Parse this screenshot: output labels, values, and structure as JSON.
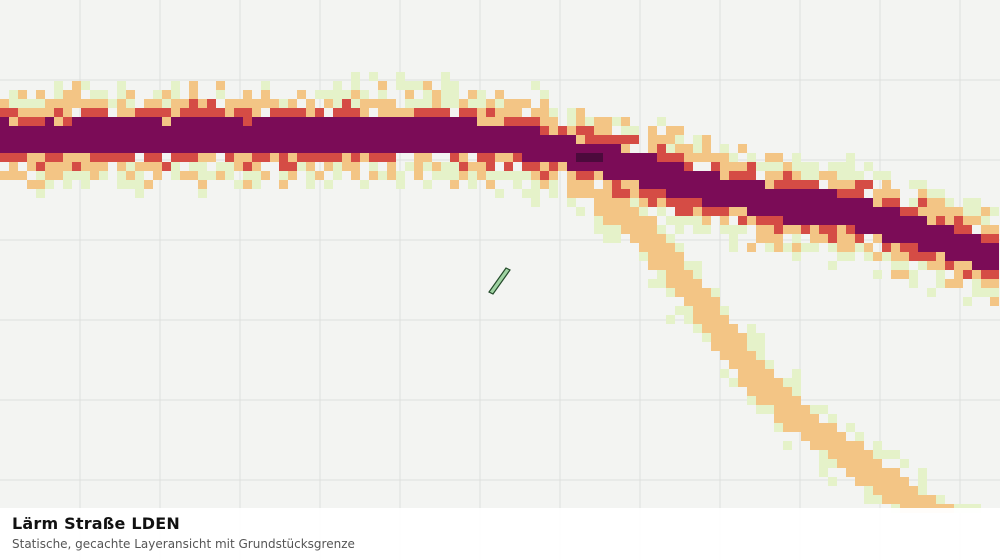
{
  "map": {
    "layer_name": "Lärm Straße LDEN",
    "colors": {
      "background": "#f3f4f2",
      "grid": "#dedfdd",
      "band_low": "#e5f2c9",
      "band_mid": "#f3c585",
      "band_high": "#d54c45",
      "band_very_high": "#7b0c57",
      "band_max": "#4c0a3c",
      "parcel_fill": "#9fd3a2",
      "parcel_stroke": "#234a2a"
    }
  },
  "caption": {
    "title": "Lärm Straße LDEN",
    "subtitle": "Statische, gecachte Layeransicht mit Grundstücksgrenze"
  }
}
